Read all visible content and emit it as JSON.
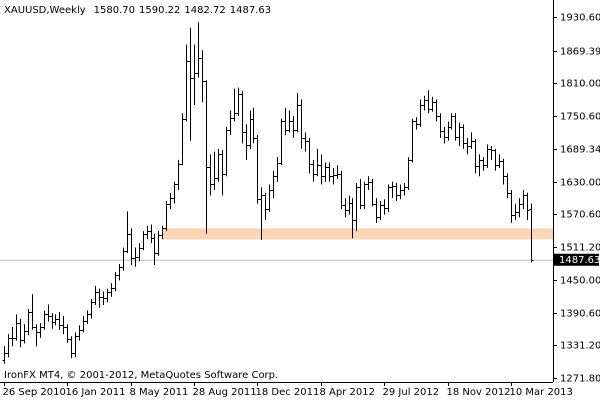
{
  "chart_data": {
    "type": "ohlc",
    "symbol": "XAUUSD,Weekly",
    "header_labels": [
      "1580.70",
      "1590.22",
      "1482.72",
      "1487.63"
    ],
    "footer": "IronFX MT4, © 2001-2012, MetaQuotes Software Corp.",
    "color": "#000000",
    "categories": [
      "26 Sep 2010",
      null,
      null,
      null,
      null,
      null,
      null,
      null,
      null,
      null,
      null,
      null,
      null,
      null,
      null,
      null,
      "16 Jan 2011",
      null,
      null,
      null,
      null,
      null,
      null,
      null,
      null,
      null,
      null,
      null,
      null,
      null,
      null,
      null,
      "8 May 2011",
      null,
      null,
      null,
      null,
      null,
      null,
      null,
      null,
      null,
      null,
      null,
      null,
      null,
      null,
      null,
      "28 Aug 2011",
      null,
      null,
      null,
      null,
      null,
      null,
      null,
      null,
      null,
      null,
      null,
      null,
      null,
      null,
      null,
      "18 Dec 2011",
      null,
      null,
      null,
      null,
      null,
      null,
      null,
      null,
      null,
      null,
      null,
      null,
      null,
      null,
      null,
      "8 Apr 2012",
      null,
      null,
      null,
      null,
      null,
      null,
      null,
      null,
      null,
      null,
      null,
      null,
      null,
      null,
      null,
      "29 Jul 2012",
      null,
      null,
      null,
      null,
      null,
      null,
      null,
      null,
      null,
      null,
      null,
      null,
      null,
      null,
      null,
      "18 Nov 2012",
      null,
      null,
      null,
      null,
      null,
      null,
      null,
      null,
      null,
      null,
      null,
      null,
      null,
      null,
      null,
      "10 Mar 2013",
      null,
      null,
      null,
      null,
      null
    ],
    "bars": [
      [
        1305,
        1330,
        1298,
        1318
      ],
      [
        1318,
        1352,
        1310,
        1345
      ],
      [
        1345,
        1365,
        1330,
        1345
      ],
      [
        1345,
        1388,
        1340,
        1373
      ],
      [
        1373,
        1380,
        1328,
        1342
      ],
      [
        1342,
        1370,
        1335,
        1358
      ],
      [
        1358,
        1398,
        1350,
        1393
      ],
      [
        1393,
        1425,
        1360,
        1365
      ],
      [
        1365,
        1370,
        1330,
        1355
      ],
      [
        1355,
        1372,
        1345,
        1365
      ],
      [
        1365,
        1395,
        1360,
        1388
      ],
      [
        1388,
        1406,
        1375,
        1385
      ],
      [
        1385,
        1390,
        1362,
        1374
      ],
      [
        1374,
        1388,
        1368,
        1380
      ],
      [
        1380,
        1392,
        1360,
        1368
      ],
      [
        1368,
        1385,
        1352,
        1365
      ],
      [
        1365,
        1370,
        1336,
        1343
      ],
      [
        1343,
        1348,
        1308,
        1318
      ],
      [
        1318,
        1355,
        1310,
        1348
      ],
      [
        1348,
        1368,
        1340,
        1360
      ],
      [
        1360,
        1385,
        1355,
        1375
      ],
      [
        1375,
        1395,
        1370,
        1388
      ],
      [
        1388,
        1416,
        1380,
        1410
      ],
      [
        1410,
        1440,
        1405,
        1428
      ],
      [
        1428,
        1435,
        1400,
        1420
      ],
      [
        1420,
        1430,
        1405,
        1418
      ],
      [
        1418,
        1435,
        1410,
        1428
      ],
      [
        1428,
        1445,
        1420,
        1437
      ],
      [
        1437,
        1465,
        1430,
        1460
      ],
      [
        1460,
        1480,
        1450,
        1474
      ],
      [
        1474,
        1510,
        1468,
        1504
      ],
      [
        1504,
        1576,
        1500,
        1535
      ],
      [
        1535,
        1545,
        1478,
        1490
      ],
      [
        1490,
        1510,
        1475,
        1492
      ],
      [
        1492,
        1518,
        1485,
        1510
      ],
      [
        1510,
        1540,
        1505,
        1535
      ],
      [
        1535,
        1549,
        1525,
        1540
      ],
      [
        1540,
        1552,
        1518,
        1528
      ],
      [
        1528,
        1535,
        1478,
        1500
      ],
      [
        1500,
        1540,
        1495,
        1532
      ],
      [
        1532,
        1550,
        1525,
        1545
      ],
      [
        1545,
        1595,
        1540,
        1590
      ],
      [
        1590,
        1610,
        1580,
        1601
      ],
      [
        1601,
        1630,
        1590,
        1625
      ],
      [
        1625,
        1670,
        1615,
        1663
      ],
      [
        1663,
        1755,
        1660,
        1745
      ],
      [
        1745,
        1880,
        1740,
        1850
      ],
      [
        1850,
        1911,
        1705,
        1820
      ],
      [
        1820,
        1880,
        1770,
        1829
      ],
      [
        1829,
        1921,
        1820,
        1855
      ],
      [
        1855,
        1870,
        1775,
        1813
      ],
      [
        1813,
        1815,
        1535,
        1657
      ],
      [
        1657,
        1680,
        1605,
        1625
      ],
      [
        1625,
        1685,
        1615,
        1636
      ],
      [
        1636,
        1690,
        1630,
        1680
      ],
      [
        1680,
        1688,
        1605,
        1645
      ],
      [
        1645,
        1730,
        1640,
        1725
      ],
      [
        1725,
        1760,
        1715,
        1747
      ],
      [
        1747,
        1800,
        1740,
        1755
      ],
      [
        1755,
        1802,
        1750,
        1790
      ],
      [
        1790,
        1795,
        1700,
        1720
      ],
      [
        1720,
        1735,
        1670,
        1697
      ],
      [
        1697,
        1760,
        1690,
        1745
      ],
      [
        1745,
        1765,
        1700,
        1710
      ],
      [
        1710,
        1715,
        1590,
        1598
      ],
      [
        1598,
        1620,
        1524,
        1605
      ],
      [
        1605,
        1610,
        1560,
        1580
      ],
      [
        1580,
        1625,
        1575,
        1615
      ],
      [
        1615,
        1650,
        1600,
        1640
      ],
      [
        1640,
        1675,
        1630,
        1665
      ],
      [
        1665,
        1745,
        1660,
        1740
      ],
      [
        1740,
        1765,
        1715,
        1725
      ],
      [
        1725,
        1760,
        1720,
        1740
      ],
      [
        1740,
        1750,
        1710,
        1725
      ],
      [
        1725,
        1792,
        1720,
        1770
      ],
      [
        1770,
        1780,
        1690,
        1710
      ],
      [
        1710,
        1720,
        1685,
        1705
      ],
      [
        1705,
        1710,
        1645,
        1662
      ],
      [
        1662,
        1670,
        1630,
        1645
      ],
      [
        1645,
        1690,
        1640,
        1660
      ],
      [
        1660,
        1680,
        1625,
        1640
      ],
      [
        1640,
        1665,
        1630,
        1657
      ],
      [
        1657,
        1665,
        1630,
        1640
      ],
      [
        1640,
        1655,
        1625,
        1643
      ],
      [
        1643,
        1660,
        1635,
        1645
      ],
      [
        1645,
        1650,
        1580,
        1588
      ],
      [
        1588,
        1600,
        1565,
        1578
      ],
      [
        1578,
        1605,
        1570,
        1592
      ],
      [
        1592,
        1600,
        1527,
        1560
      ],
      [
        1560,
        1628,
        1540,
        1620
      ],
      [
        1620,
        1635,
        1580,
        1588
      ],
      [
        1588,
        1630,
        1580,
        1625
      ],
      [
        1625,
        1640,
        1615,
        1630
      ],
      [
        1630,
        1635,
        1585,
        1590
      ],
      [
        1590,
        1600,
        1555,
        1565
      ],
      [
        1565,
        1595,
        1560,
        1587
      ],
      [
        1587,
        1598,
        1570,
        1582
      ],
      [
        1582,
        1625,
        1575,
        1620
      ],
      [
        1620,
        1630,
        1600,
        1623
      ],
      [
        1623,
        1628,
        1595,
        1605
      ],
      [
        1605,
        1625,
        1598,
        1615
      ],
      [
        1615,
        1628,
        1605,
        1620
      ],
      [
        1620,
        1675,
        1615,
        1670
      ],
      [
        1670,
        1745,
        1665,
        1740
      ],
      [
        1740,
        1748,
        1725,
        1735
      ],
      [
        1735,
        1780,
        1730,
        1770
      ],
      [
        1770,
        1787,
        1760,
        1780
      ],
      [
        1780,
        1797,
        1755,
        1763
      ],
      [
        1763,
        1785,
        1758,
        1775
      ],
      [
        1775,
        1780,
        1740,
        1750
      ],
      [
        1750,
        1755,
        1710,
        1722
      ],
      [
        1722,
        1730,
        1700,
        1712
      ],
      [
        1712,
        1740,
        1705,
        1730
      ],
      [
        1730,
        1755,
        1725,
        1750
      ],
      [
        1750,
        1755,
        1705,
        1712
      ],
      [
        1712,
        1738,
        1695,
        1730
      ],
      [
        1730,
        1735,
        1690,
        1700
      ],
      [
        1700,
        1710,
        1680,
        1695
      ],
      [
        1695,
        1720,
        1690,
        1705
      ],
      [
        1705,
        1708,
        1645,
        1658
      ],
      [
        1658,
        1680,
        1640,
        1670
      ],
      [
        1670,
        1675,
        1650,
        1660
      ],
      [
        1660,
        1698,
        1655,
        1690
      ],
      [
        1690,
        1695,
        1670,
        1687
      ],
      [
        1687,
        1690,
        1650,
        1660
      ],
      [
        1660,
        1680,
        1655,
        1667
      ],
      [
        1667,
        1672,
        1625,
        1640
      ],
      [
        1640,
        1645,
        1600,
        1610
      ],
      [
        1610,
        1615,
        1555,
        1570
      ],
      [
        1570,
        1590,
        1560,
        1575
      ],
      [
        1575,
        1600,
        1565,
        1590
      ],
      [
        1590,
        1615,
        1580,
        1605
      ],
      [
        1605,
        1610,
        1560,
        1578
      ],
      [
        1580.7,
        1590.22,
        1482.72,
        1487.63
      ]
    ],
    "zone": {
      "low": 1525,
      "high": 1545,
      "start": 40,
      "color": "#fcd5b5"
    },
    "last_price": {
      "value": 1487.63,
      "label": "1487.63"
    },
    "ylim": [
      1264.6,
      1961.6
    ],
    "yticks": [
      {
        "value": 1930.6,
        "label": "1930.60"
      },
      1869.39,
      {
        "value": 1810,
        "label": "1810.00"
      },
      {
        "value": 1750.6,
        "label": "1750.60"
      },
      1689.34,
      {
        "value": 1630,
        "label": "1630.00"
      },
      {
        "value": 1570.6,
        "label": "1570.60"
      },
      {
        "value": 1511.2,
        "label": "1511.20"
      },
      {
        "value": 1450,
        "label": "1450.00"
      },
      {
        "value": 1390.6,
        "label": "1390.60"
      },
      {
        "value": 1331.2,
        "label": "1331.20"
      },
      {
        "value": 1271.8,
        "label": "1271.80"
      }
    ]
  }
}
